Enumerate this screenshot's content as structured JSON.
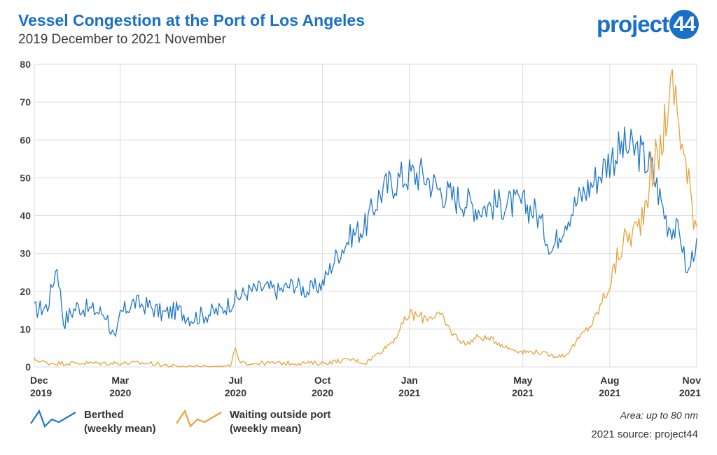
{
  "header": {
    "title": "Vessel Congestion at the Port of Los Angeles",
    "subtitle": "2019 December to 2021 November",
    "logo_text": "project",
    "logo_badge": "44"
  },
  "legend": {
    "berthed_line1": "Berthed",
    "berthed_line2": "(weekly mean)",
    "waiting_line1": "Waiting outside port",
    "waiting_line2": "(weekly mean)"
  },
  "notes": {
    "area": "Area: up to 80 nm",
    "source": "2021 source: project44"
  },
  "colors": {
    "berthed": "#1f77c8",
    "waiting": "#e8a33a",
    "title": "#1a6fc9",
    "grid": "#dcdcdc"
  },
  "chart_data": {
    "type": "line",
    "title": "Vessel Congestion at the Port of Los Angeles",
    "subtitle": "2019 December to 2021 November",
    "ylim": [
      0,
      80
    ],
    "yticks": [
      0,
      10,
      20,
      30,
      40,
      50,
      60,
      70,
      80
    ],
    "xlim": [
      "2019-12-01",
      "2021-11-01"
    ],
    "xticks": [
      {
        "date": "2019-12-01",
        "month": "Dec",
        "year": "2019"
      },
      {
        "date": "2020-03-01",
        "month": "Mar",
        "year": "2020"
      },
      {
        "date": "2020-07-01",
        "month": "Jul",
        "year": "2020"
      },
      {
        "date": "2020-10-01",
        "month": "Oct",
        "year": "2020"
      },
      {
        "date": "2021-01-01",
        "month": "Jan",
        "year": "2021"
      },
      {
        "date": "2021-05-01",
        "month": "May",
        "year": "2021"
      },
      {
        "date": "2021-08-01",
        "month": "Aug",
        "year": "2021"
      },
      {
        "date": "2021-11-01",
        "month": "Nov",
        "year": "2021"
      }
    ],
    "grid": true,
    "legend_position": "bottom-left",
    "series": [
      {
        "name": "Berthed (weekly mean)",
        "color": "#1f77c8",
        "points": [
          [
            "2019-12-01",
            15
          ],
          [
            "2019-12-15",
            16
          ],
          [
            "2019-12-25",
            27
          ],
          [
            "2020-01-01",
            12
          ],
          [
            "2020-01-15",
            16
          ],
          [
            "2020-02-01",
            15
          ],
          [
            "2020-02-15",
            14
          ],
          [
            "2020-02-25",
            6
          ],
          [
            "2020-03-01",
            14
          ],
          [
            "2020-03-15",
            17
          ],
          [
            "2020-04-01",
            16
          ],
          [
            "2020-04-15",
            14
          ],
          [
            "2020-05-01",
            15
          ],
          [
            "2020-05-15",
            13
          ],
          [
            "2020-06-01",
            14
          ],
          [
            "2020-06-15",
            15
          ],
          [
            "2020-07-01",
            18
          ],
          [
            "2020-07-15",
            20
          ],
          [
            "2020-08-01",
            21
          ],
          [
            "2020-08-15",
            20
          ],
          [
            "2020-09-01",
            22
          ],
          [
            "2020-09-15",
            20
          ],
          [
            "2020-10-01",
            22
          ],
          [
            "2020-10-15",
            29
          ],
          [
            "2020-11-01",
            35
          ],
          [
            "2020-11-15",
            37
          ],
          [
            "2020-12-01",
            46
          ],
          [
            "2020-12-15",
            49
          ],
          [
            "2021-01-01",
            51
          ],
          [
            "2021-01-15",
            51
          ],
          [
            "2021-02-01",
            47
          ],
          [
            "2021-02-15",
            45
          ],
          [
            "2021-03-01",
            44
          ],
          [
            "2021-03-15",
            42
          ],
          [
            "2021-04-01",
            43
          ],
          [
            "2021-04-15",
            43
          ],
          [
            "2021-05-01",
            43
          ],
          [
            "2021-05-15",
            41
          ],
          [
            "2021-06-01",
            31
          ],
          [
            "2021-06-15",
            39
          ],
          [
            "2021-07-01",
            45
          ],
          [
            "2021-07-15",
            49
          ],
          [
            "2021-08-01",
            55
          ],
          [
            "2021-08-15",
            58
          ],
          [
            "2021-09-01",
            57
          ],
          [
            "2021-09-15",
            52
          ],
          [
            "2021-10-01",
            38
          ],
          [
            "2021-10-15",
            35
          ],
          [
            "2021-10-22",
            24
          ],
          [
            "2021-11-01",
            34
          ]
        ]
      },
      {
        "name": "Waiting outside port (weekly mean)",
        "color": "#e8a33a",
        "points": [
          [
            "2019-12-01",
            2
          ],
          [
            "2019-12-15",
            1
          ],
          [
            "2020-01-01",
            1
          ],
          [
            "2020-01-15",
            1
          ],
          [
            "2020-02-01",
            1
          ],
          [
            "2020-03-01",
            1
          ],
          [
            "2020-04-01",
            1
          ],
          [
            "2020-05-01",
            0
          ],
          [
            "2020-06-01",
            0
          ],
          [
            "2020-06-25",
            0
          ],
          [
            "2020-07-01",
            5
          ],
          [
            "2020-07-05",
            1
          ],
          [
            "2020-08-01",
            1
          ],
          [
            "2020-09-01",
            1
          ],
          [
            "2020-10-01",
            1
          ],
          [
            "2020-11-01",
            2
          ],
          [
            "2020-11-15",
            1
          ],
          [
            "2020-12-01",
            4
          ],
          [
            "2020-12-15",
            7
          ],
          [
            "2021-01-01",
            14
          ],
          [
            "2021-01-15",
            13
          ],
          [
            "2021-02-01",
            14
          ],
          [
            "2021-02-15",
            9
          ],
          [
            "2021-03-01",
            6
          ],
          [
            "2021-03-15",
            8
          ],
          [
            "2021-04-01",
            7
          ],
          [
            "2021-04-15",
            5
          ],
          [
            "2021-05-01",
            4
          ],
          [
            "2021-05-15",
            4
          ],
          [
            "2021-06-01",
            3
          ],
          [
            "2021-06-15",
            3
          ],
          [
            "2021-07-01",
            8
          ],
          [
            "2021-07-15",
            12
          ],
          [
            "2021-08-01",
            22
          ],
          [
            "2021-08-15",
            33
          ],
          [
            "2021-09-01",
            37
          ],
          [
            "2021-09-15",
            53
          ],
          [
            "2021-09-22",
            55
          ],
          [
            "2021-10-01",
            69
          ],
          [
            "2021-10-08",
            74
          ],
          [
            "2021-10-15",
            62
          ],
          [
            "2021-10-22",
            50
          ],
          [
            "2021-11-01",
            37
          ]
        ]
      }
    ]
  }
}
